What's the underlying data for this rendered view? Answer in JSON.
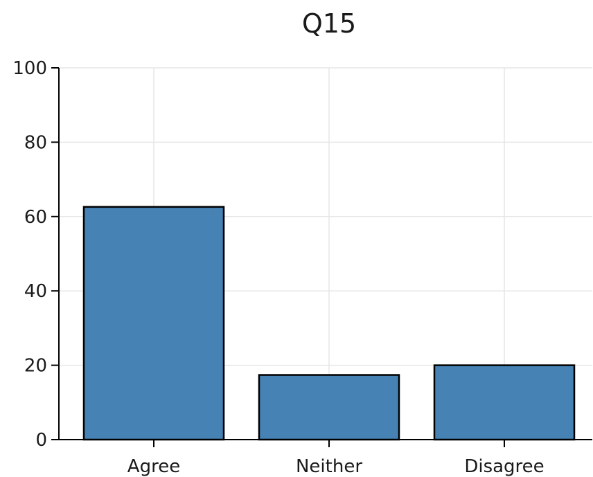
{
  "chart_data": {
    "type": "bar",
    "title": "Q15",
    "xlabel": "",
    "ylabel": "",
    "categories": [
      "Agree",
      "Neither",
      "Disagree"
    ],
    "values": [
      62.6,
      17.4,
      20.0
    ],
    "ylim": [
      0,
      100
    ],
    "yticks": [
      "0",
      "20",
      "40",
      "60",
      "80",
      "100"
    ],
    "grid": true,
    "colors": {
      "bar": "#4682b4",
      "bar_edge": "#000000",
      "grid": "#e6e6e6",
      "axis": "#000000"
    }
  }
}
